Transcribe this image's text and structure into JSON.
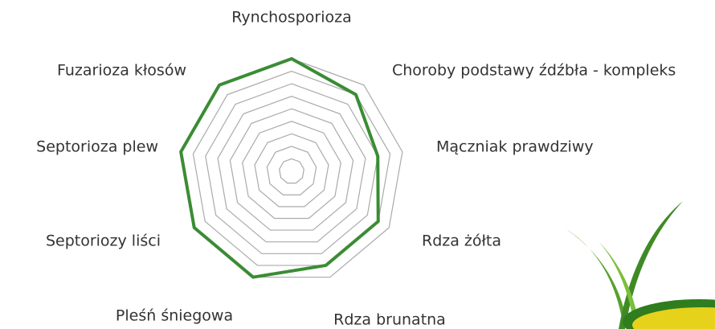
{
  "chart_data": {
    "type": "radar",
    "categories": [
      "Rynchosporioza",
      "Choroby podstawy źdźbła - kompleks",
      "Mączniak prawdziwy",
      "Rdza żółta",
      "Rdza brunatna",
      "Pleśń śniegowa",
      "Septoriozy liści",
      "Septorioza plew",
      "Fuzarioza kłosów"
    ],
    "series": [
      {
        "color": "#3b8c34",
        "values": [
          9,
          8,
          7,
          8,
          8,
          9,
          9,
          9,
          9
        ]
      }
    ],
    "ylim": [
      0,
      9
    ],
    "yticks": [
      1,
      2,
      3,
      4,
      5,
      6,
      7,
      8,
      9
    ],
    "grid": true
  }
}
